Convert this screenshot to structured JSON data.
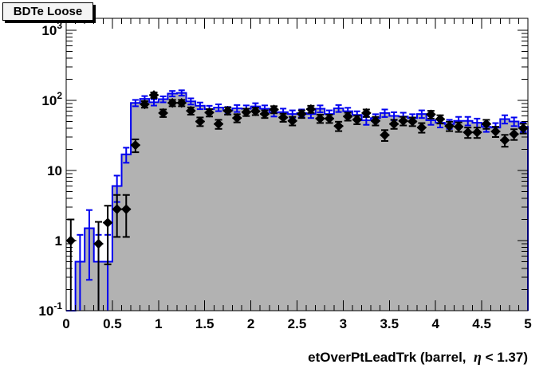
{
  "title_box": {
    "text": "BDTe Loose"
  },
  "x_axis": {
    "title_prefix": "etOverPtLeadTrk (barrel,  ",
    "title_eta": "η",
    "title_suffix": " < 1.37)",
    "min": 0,
    "max": 5,
    "major_tick_step": 0.5,
    "minor_tick_step": 0.1,
    "tick_labels": [
      {
        "label": "0",
        "value": 0
      },
      {
        "label": "0.5",
        "value": 0.5
      },
      {
        "label": "1",
        "value": 1
      },
      {
        "label": "1.5",
        "value": 1.5
      },
      {
        "label": "2",
        "value": 2
      },
      {
        "label": "2.5",
        "value": 2.5
      },
      {
        "label": "3",
        "value": 3
      },
      {
        "label": "3.5",
        "value": 3.5
      },
      {
        "label": "4",
        "value": 4
      },
      {
        "label": "4.5",
        "value": 4.5
      },
      {
        "label": "5",
        "value": 5
      }
    ]
  },
  "y_axis": {
    "scale": "log",
    "min": 0.1,
    "max": 1480,
    "tick_labels": [
      {
        "base": "10",
        "exp": "3",
        "value": 1000
      },
      {
        "base": "10",
        "exp": "2",
        "value": 100
      },
      {
        "base": "10",
        "exp": "",
        "value": 10
      },
      {
        "base": "1",
        "exp": "",
        "value": 1
      },
      {
        "base": "10",
        "exp": "-1",
        "value": 0.1
      }
    ]
  },
  "colors": {
    "histogram_line": "#0000f0",
    "histogram_fill": "#b2b2b2",
    "marker": "#000000",
    "frame": "#000000",
    "background": "#ffffff",
    "title_box_fill": "#f4f4f4"
  },
  "chart_data": {
    "type": "bar",
    "subtype": "step-histogram-with-scatter-points",
    "title": "BDTe Loose",
    "xlabel": "etOverPtLeadTrk (barrel, η < 1.37)",
    "ylabel": "",
    "xlim": [
      0,
      5
    ],
    "ylim": [
      0.1,
      1480
    ],
    "ylog": true,
    "grid": false,
    "legend": "none",
    "bin_width": 0.1,
    "series": [
      {
        "name": "gray-filled-blue-step-histogram",
        "color": "#0000f0",
        "fill": "#b2b2b2",
        "centers": [
          0.05,
          0.15,
          0.25,
          0.35,
          0.45,
          0.55,
          0.65,
          0.75,
          0.85,
          0.95,
          1.05,
          1.15,
          1.25,
          1.35,
          1.45,
          1.55,
          1.65,
          1.75,
          1.85,
          1.95,
          2.05,
          2.15,
          2.25,
          2.35,
          2.45,
          2.55,
          2.65,
          2.75,
          2.85,
          2.95,
          3.05,
          3.15,
          3.25,
          3.35,
          3.45,
          3.55,
          3.65,
          3.75,
          3.85,
          3.95,
          4.05,
          4.15,
          4.25,
          4.35,
          4.45,
          4.55,
          4.65,
          4.75,
          4.85,
          4.95
        ],
        "values": [
          0,
          0.5,
          1.5,
          0.5,
          0.5,
          6,
          17,
          92,
          105,
          94,
          104,
          125,
          128,
          97,
          84,
          75,
          79,
          72,
          77,
          76,
          82,
          76,
          67,
          68,
          64,
          66,
          64,
          76,
          64,
          77,
          70,
          62,
          52,
          56,
          66,
          60,
          59,
          56,
          64,
          52,
          48,
          46,
          51,
          51,
          48,
          42,
          41,
          54,
          50,
          42
        ]
      },
      {
        "name": "black-diamond-data-points",
        "color": "#000000",
        "marker": "diamond",
        "x": [
          0.05,
          0.35,
          0.45,
          0.55,
          0.65,
          0.75,
          0.85,
          0.95,
          1.05,
          1.15,
          1.25,
          1.35,
          1.45,
          1.55,
          1.65,
          1.75,
          1.85,
          1.95,
          2.05,
          2.15,
          2.25,
          2.35,
          2.45,
          2.55,
          2.65,
          2.75,
          2.85,
          2.95,
          3.05,
          3.15,
          3.25,
          3.35,
          3.45,
          3.55,
          3.65,
          3.75,
          3.85,
          3.95,
          4.05,
          4.15,
          4.25,
          4.35,
          4.45,
          4.55,
          4.65,
          4.75,
          4.85,
          4.95
        ],
        "y": [
          1.0,
          0.9,
          1.8,
          2.8,
          2.8,
          23,
          88,
          119,
          66,
          92,
          92,
          71,
          50,
          67,
          46,
          71,
          56,
          68,
          70,
          64,
          74,
          57,
          51,
          64,
          75,
          55,
          55,
          43,
          59,
          53,
          66,
          51,
          32,
          46,
          51,
          50,
          41,
          63,
          54,
          43,
          42,
          35,
          35,
          46,
          36,
          27,
          33,
          40
        ]
      }
    ]
  }
}
